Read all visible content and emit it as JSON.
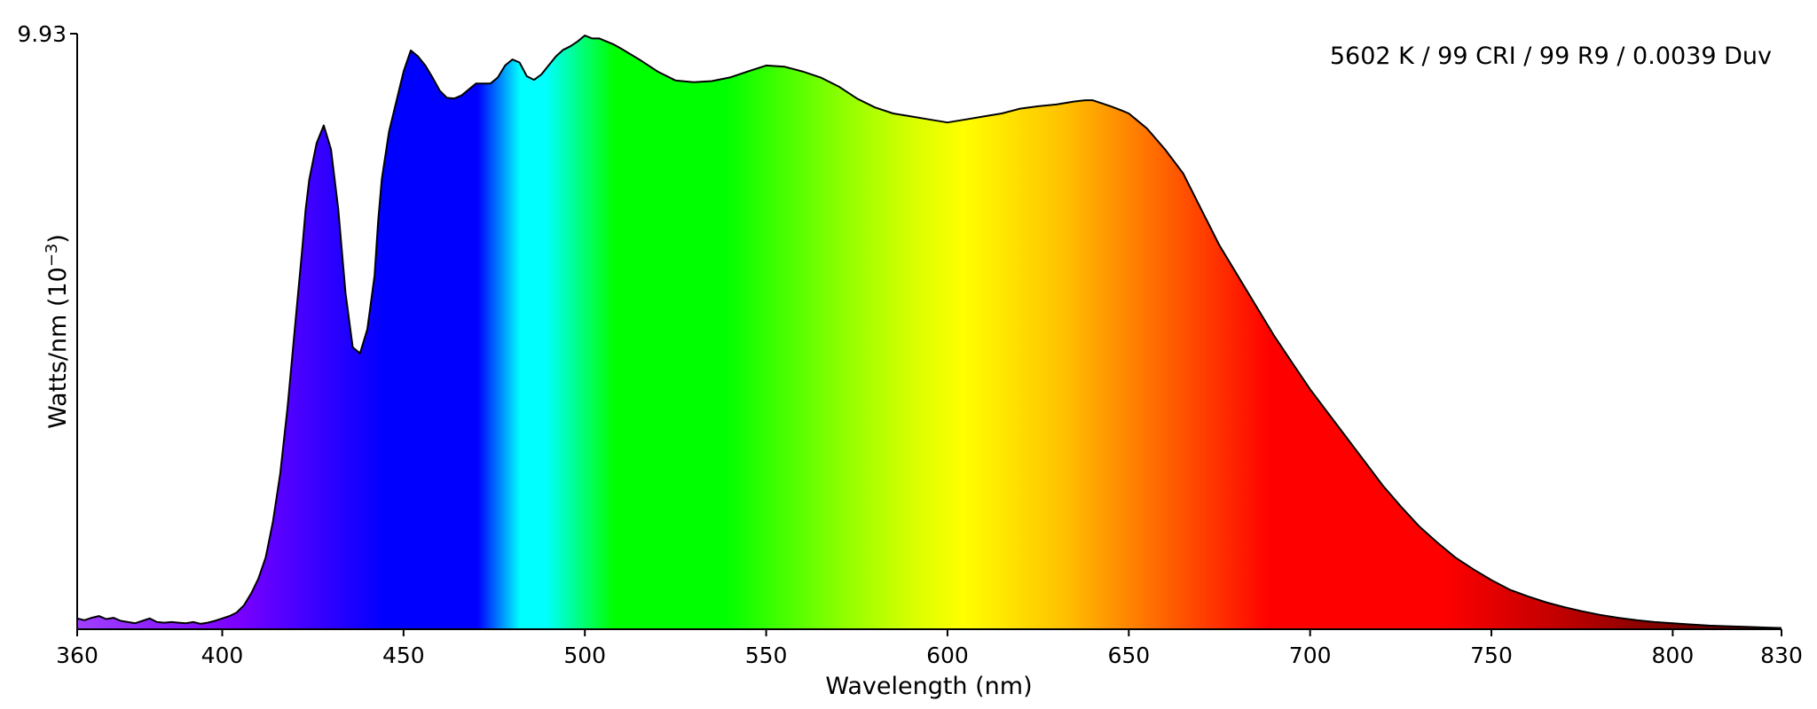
{
  "chart_data": {
    "type": "area",
    "title": "",
    "annotation": "5602 K / 99 CRI / 99 R9 / 0.0039 Duv",
    "xlabel": "Wavelength (nm)",
    "ylabel_main": "Watts/nm (10",
    "ylabel_exp": "−3",
    "ylabel_close": ")",
    "xlim": [
      360,
      830
    ],
    "ylim": [
      0,
      9.93
    ],
    "x_ticks": [
      360,
      400,
      450,
      500,
      550,
      600,
      650,
      700,
      750,
      800,
      830
    ],
    "y_ticks": [
      "9.93"
    ],
    "grid": false,
    "legend": "none",
    "fill": "visible spectrum color gradient",
    "series": [
      {
        "x": [
          360,
          362,
          364,
          366,
          368,
          370,
          372,
          374,
          376,
          378,
          380,
          382,
          384,
          386,
          388,
          390,
          392,
          394,
          396,
          398,
          400,
          402,
          404,
          406,
          408,
          410,
          412,
          414,
          416,
          418,
          420,
          422,
          423,
          424,
          426,
          428,
          430,
          432,
          434,
          436,
          438,
          440,
          442,
          443,
          444,
          446,
          448,
          450,
          452,
          454,
          456,
          458,
          460,
          462,
          464,
          466,
          468,
          470,
          472,
          474,
          476,
          478,
          480,
          482,
          484,
          486,
          488,
          490,
          492,
          494,
          496,
          498,
          500,
          502,
          504,
          506,
          508,
          510,
          515,
          520,
          525,
          530,
          535,
          540,
          545,
          550,
          555,
          560,
          565,
          570,
          575,
          580,
          585,
          590,
          595,
          600,
          605,
          610,
          615,
          620,
          625,
          630,
          635,
          638,
          640,
          642,
          645,
          648,
          650,
          652,
          655,
          660,
          665,
          670,
          675,
          680,
          685,
          690,
          695,
          700,
          705,
          710,
          715,
          720,
          725,
          730,
          735,
          740,
          745,
          750,
          755,
          760,
          765,
          770,
          775,
          780,
          785,
          790,
          795,
          800,
          805,
          810,
          815,
          820,
          825,
          830
        ],
        "y": [
          0.18,
          0.15,
          0.19,
          0.22,
          0.17,
          0.19,
          0.14,
          0.12,
          0.1,
          0.14,
          0.18,
          0.12,
          0.11,
          0.12,
          0.11,
          0.1,
          0.12,
          0.09,
          0.11,
          0.14,
          0.18,
          0.22,
          0.28,
          0.4,
          0.6,
          0.85,
          1.2,
          1.8,
          2.6,
          3.7,
          5.0,
          6.3,
          7.0,
          7.5,
          8.1,
          8.4,
          8.0,
          7.0,
          5.6,
          4.7,
          4.6,
          5.0,
          5.9,
          6.8,
          7.5,
          8.3,
          8.8,
          9.3,
          9.65,
          9.55,
          9.4,
          9.2,
          8.98,
          8.86,
          8.85,
          8.9,
          9.0,
          9.1,
          9.1,
          9.1,
          9.2,
          9.4,
          9.5,
          9.45,
          9.22,
          9.16,
          9.25,
          9.4,
          9.55,
          9.66,
          9.72,
          9.8,
          9.9,
          9.85,
          9.85,
          9.8,
          9.75,
          9.68,
          9.5,
          9.3,
          9.15,
          9.12,
          9.14,
          9.2,
          9.3,
          9.4,
          9.38,
          9.3,
          9.2,
          9.05,
          8.85,
          8.7,
          8.6,
          8.55,
          8.5,
          8.45,
          8.5,
          8.55,
          8.6,
          8.68,
          8.72,
          8.75,
          8.8,
          8.82,
          8.82,
          8.78,
          8.72,
          8.65,
          8.6,
          8.5,
          8.35,
          8.0,
          7.6,
          7.0,
          6.4,
          5.9,
          5.4,
          4.9,
          4.45,
          4.0,
          3.6,
          3.2,
          2.8,
          2.4,
          2.05,
          1.72,
          1.45,
          1.2,
          1.0,
          0.82,
          0.66,
          0.55,
          0.45,
          0.37,
          0.3,
          0.24,
          0.19,
          0.15,
          0.12,
          0.1,
          0.08,
          0.06,
          0.05,
          0.04,
          0.03,
          0.02
        ]
      }
    ]
  }
}
